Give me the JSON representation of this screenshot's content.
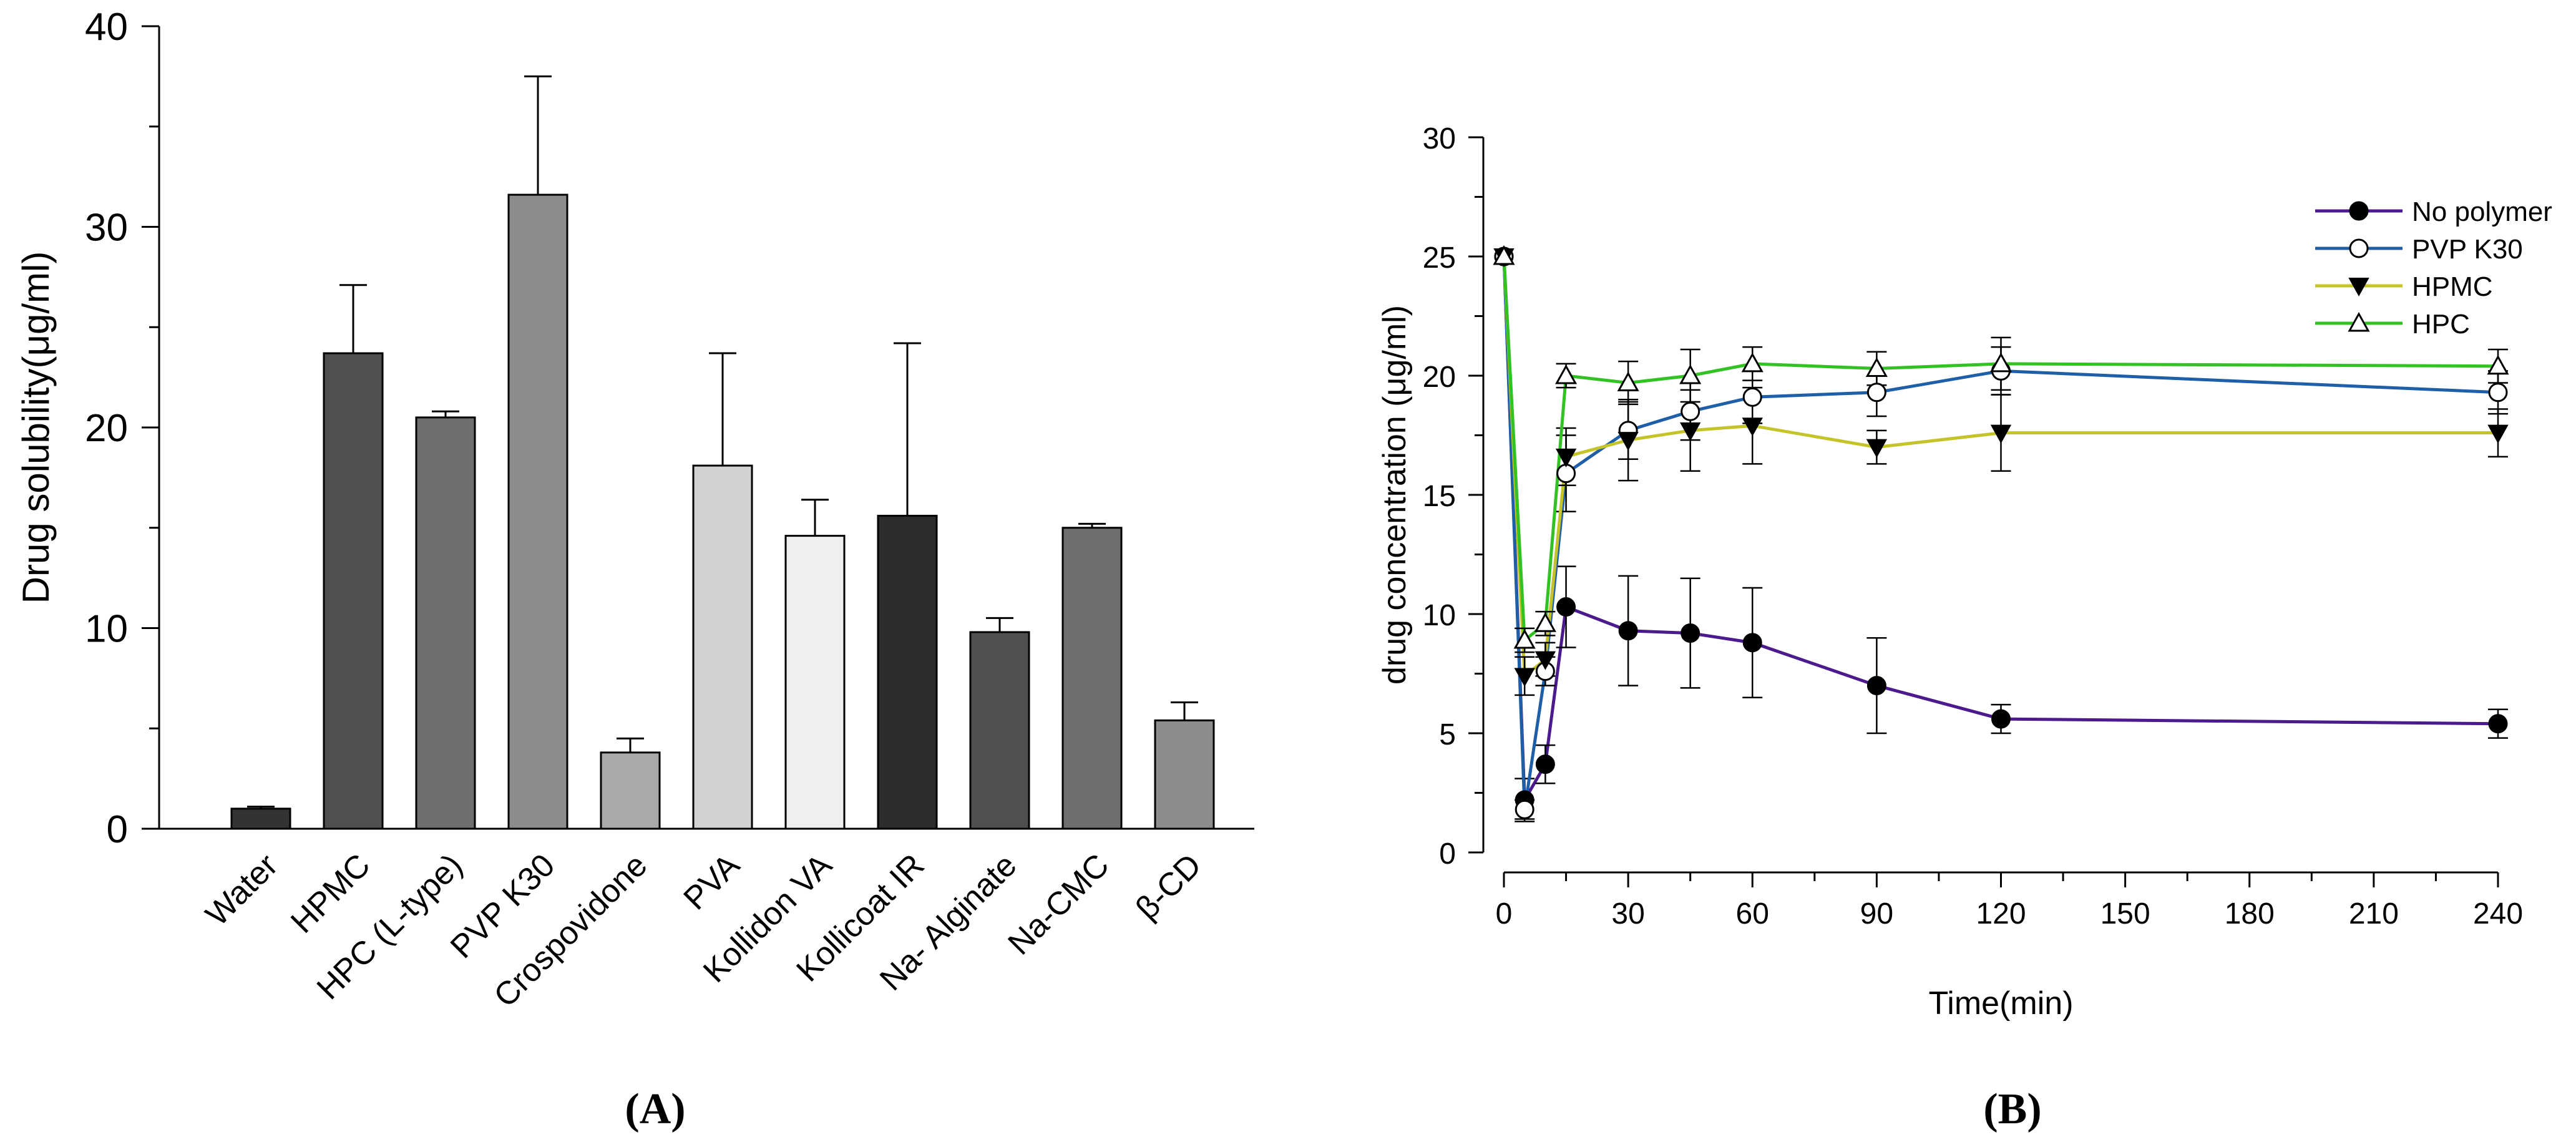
{
  "chart_data": [
    {
      "type": "bar",
      "panel_label": "A",
      "title": "",
      "xlabel": "",
      "ylabel": "Drug solubility(μg/ml)",
      "ylim": [
        0,
        40
      ],
      "yticks": [
        "0",
        "10",
        "20",
        "30",
        "40"
      ],
      "categories": [
        "Water",
        "HPMC",
        "HPC (L-type)",
        "PVP K30",
        "Crospovidone",
        "PVA",
        "Kollidon VA",
        "Kollicoat IR",
        "Na- Alginate",
        "Na-CMC",
        "β-CD"
      ],
      "values": [
        1.0,
        23.7,
        20.5,
        31.6,
        3.8,
        18.1,
        14.6,
        15.6,
        9.8,
        15.0,
        5.4
      ],
      "errors": [
        0.1,
        3.4,
        0.3,
        5.9,
        0.7,
        5.6,
        1.8,
        8.6,
        0.7,
        0.2,
        0.9
      ],
      "colors": [
        "#333333",
        "#505050",
        "#6e6e6e",
        "#8c8c8c",
        "#a9a9a9",
        "#d2d2d2",
        "#efefef",
        "#2c2c2c",
        "#505050",
        "#6e6e6e",
        "#8c8c8c"
      ]
    },
    {
      "type": "line",
      "panel_label": "B",
      "title": "",
      "xlabel": "Time(min)",
      "ylabel": "drug concentration (μg/ml)",
      "xlim": [
        0,
        240
      ],
      "ylim": [
        0,
        30
      ],
      "xticks": [
        "0",
        "30",
        "60",
        "90",
        "120",
        "150",
        "180",
        "210",
        "240"
      ],
      "yticks": [
        "0",
        "5",
        "10",
        "15",
        "20",
        "25",
        "30"
      ],
      "legend_position": "top-right",
      "x": [
        0,
        5,
        10,
        15,
        30,
        45,
        60,
        90,
        120,
        240
      ],
      "series": [
        {
          "name": "No polymer",
          "color": "#4b1a8c",
          "marker": "filled-circle",
          "values": [
            25.0,
            2.2,
            3.7,
            10.3,
            9.3,
            9.2,
            8.8,
            7.0,
            5.6,
            5.4
          ],
          "errors": [
            0,
            0.9,
            0.8,
            1.7,
            2.3,
            2.3,
            2.3,
            2.0,
            0.6,
            0.6
          ]
        },
        {
          "name": "PVP K30",
          "color": "#1f5fa8",
          "marker": "open-circle",
          "values": [
            25.0,
            1.8,
            7.6,
            15.9,
            17.7,
            18.5,
            19.1,
            19.3,
            20.2,
            19.3
          ],
          "errors": [
            0,
            0.4,
            0.6,
            1.6,
            1.2,
            1.2,
            1.1,
            1.0,
            1.0,
            0.9
          ]
        },
        {
          "name": "HPMC",
          "color": "#c4c42a",
          "marker": "filled-triangle-down",
          "values": [
            25.0,
            7.4,
            8.1,
            16.6,
            17.3,
            17.7,
            17.9,
            17.0,
            17.6,
            17.6
          ],
          "errors": [
            0,
            0.8,
            0.7,
            1.2,
            1.7,
            1.7,
            1.6,
            0.7,
            1.6,
            1.0
          ]
        },
        {
          "name": "HPC",
          "color": "#33c223",
          "marker": "open-triangle-up",
          "values": [
            25.0,
            8.9,
            9.6,
            20.0,
            19.7,
            20.0,
            20.5,
            20.3,
            20.5,
            20.4
          ],
          "errors": [
            0,
            0.5,
            0.5,
            0.5,
            0.9,
            1.1,
            0.7,
            0.7,
            1.1,
            0.7
          ]
        }
      ]
    }
  ]
}
